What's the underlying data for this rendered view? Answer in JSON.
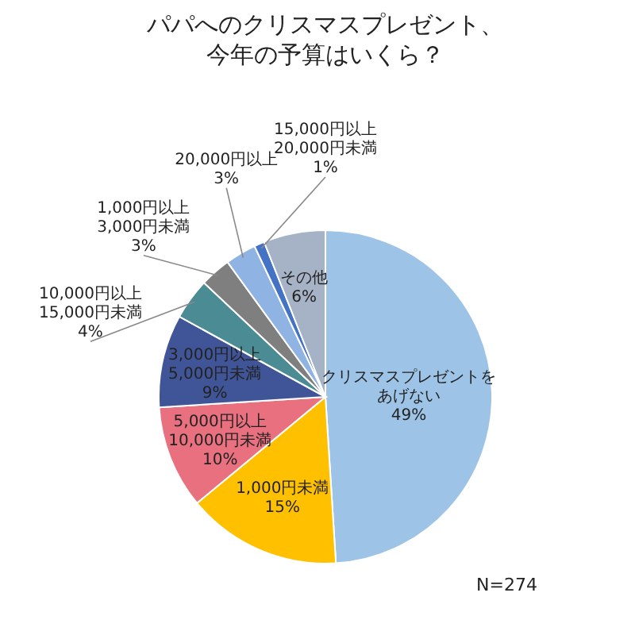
{
  "chart_data": {
    "type": "pie",
    "title": "パパへのクリスマスプレゼント、今年の予算はいくら？",
    "categories": [
      "クリスマスプレゼントをあげない",
      "1,000円未満",
      "5,000円以上10,000円未満",
      "3,000円以上5,000円未満",
      "10,000円以上15,000円未満",
      "1,000円以上3,000円未満",
      "20,000円以上",
      "15,000円以上20,000円未満",
      "その他"
    ],
    "values": [
      49,
      15,
      10,
      9,
      4,
      3,
      3,
      1,
      6
    ],
    "value_labels": [
      "49%",
      "15%",
      "10%",
      "9%",
      "4%",
      "3%",
      "3%",
      "1%",
      "6%"
    ],
    "colors": [
      "#9dc3e6",
      "#ffc000",
      "#e8707f",
      "#3f5597",
      "#4b8b93",
      "#7f7f7f",
      "#8fb4e3",
      "#4472c4",
      "#a6b2c6"
    ],
    "annotations": [
      "N=274"
    ]
  }
}
